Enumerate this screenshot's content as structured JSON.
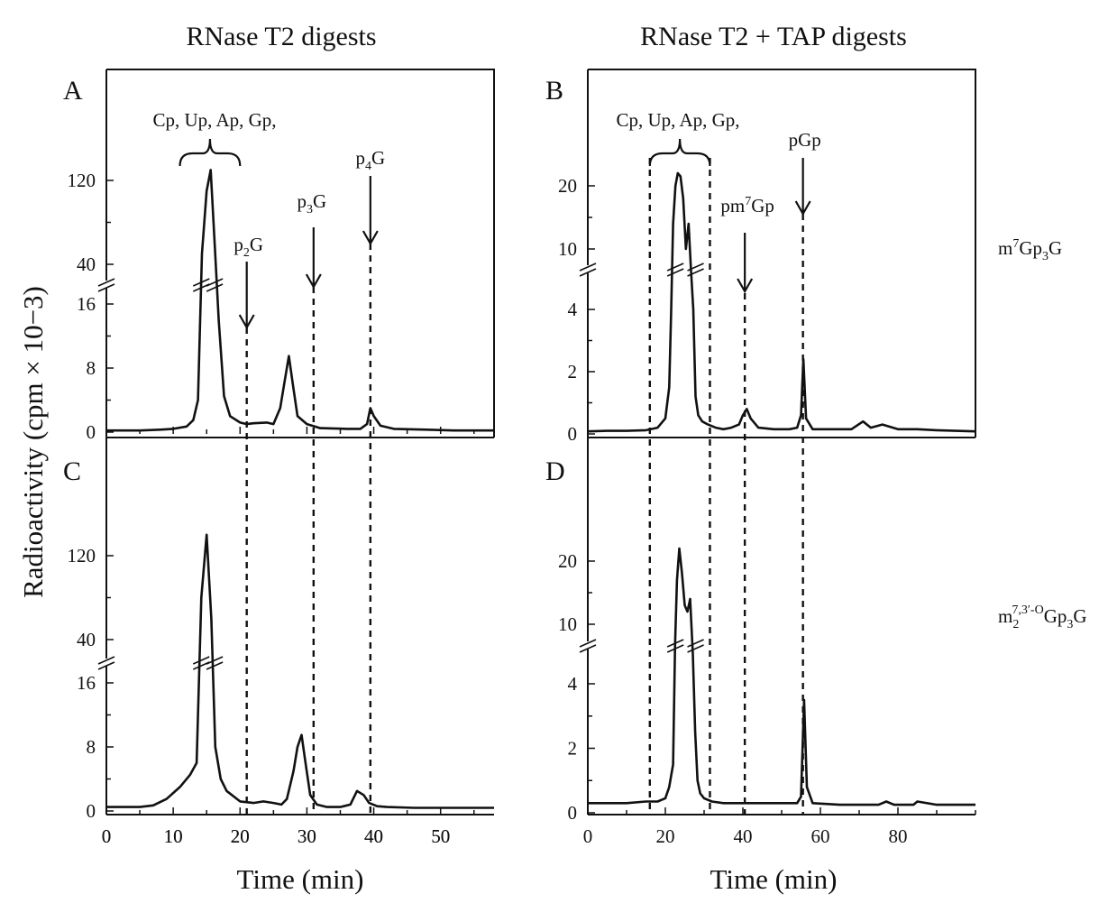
{
  "column_titles": {
    "left": "RNase T2 digests",
    "right": "RNase T2 + TAP digests"
  },
  "axis_titles": {
    "y": "Radioactivity (cpm × 10−3)",
    "x_left": "Time (min)",
    "x_right": "Time (min)"
  },
  "row_labels": {
    "top": {
      "base": "m",
      "sup": "7",
      "mid": "Gp",
      "sub": "3",
      "end": "G"
    },
    "bottom": {
      "base": "m",
      "sub1": "2",
      "sup1": "7,3′-O",
      "mid": "Gp",
      "sub2": "3",
      "end": "G"
    }
  },
  "colors": {
    "line": "#111111",
    "background": "#ffffff"
  },
  "chart_data": [
    {
      "type": "line",
      "panel": "A",
      "x_ticks": [
        "0",
        "10",
        "20",
        "30",
        "40",
        "50"
      ],
      "xlim": [
        0,
        58
      ],
      "y_ticks_lower": [
        "0",
        "8",
        "16"
      ],
      "y_ticks_upper": [
        "40",
        "120"
      ],
      "y_axis_break": true,
      "annotations": {
        "bracket": "Cp, Up, Ap, Gp,",
        "p2G": {
          "base": "p",
          "sub": "2",
          "end": "G",
          "x": 21
        },
        "p3G": {
          "base": "p",
          "sub": "3",
          "end": "G",
          "x": 31
        },
        "p4G": {
          "base": "p",
          "sub": "4",
          "end": "G",
          "x": 39.5
        }
      },
      "x": [
        0,
        5,
        8,
        10,
        12,
        13,
        13.7,
        14.3,
        15,
        15.6,
        16.2,
        16.8,
        17.6,
        18.5,
        20,
        21,
        22,
        24,
        25,
        26,
        26.6,
        27.3,
        27.9,
        28.6,
        30,
        32,
        36,
        38,
        39,
        39.5,
        40,
        41,
        43,
        48,
        52,
        58
      ],
      "y": [
        0.2,
        0.2,
        0.3,
        0.4,
        0.7,
        1.5,
        4,
        50,
        110,
        130,
        60,
        14,
        4.5,
        2,
        1.2,
        1,
        1.1,
        1.2,
        1,
        3,
        6,
        9.5,
        6,
        2,
        1,
        0.5,
        0.4,
        0.4,
        1,
        3,
        2,
        0.8,
        0.4,
        0.3,
        0.2,
        0.2
      ]
    },
    {
      "type": "line",
      "panel": "B",
      "x_ticks": [],
      "xlim": [
        0,
        100
      ],
      "y_ticks_lower": [
        "0",
        "2",
        "4"
      ],
      "y_ticks_upper": [
        "10",
        "20"
      ],
      "y_axis_break": true,
      "annotations": {
        "bracket": "Cp, Up, Ap, Gp,",
        "pm7Gp": {
          "base": "pm",
          "sup": "7",
          "end": "Gp",
          "x": 40
        },
        "pGp": {
          "text": "pGp",
          "x": 55
        }
      },
      "x": [
        0,
        5,
        10,
        15,
        18,
        20,
        21,
        21.5,
        22,
        22.6,
        23.2,
        23.9,
        24.6,
        25.3,
        26,
        26.6,
        27.2,
        27.8,
        28.5,
        29.5,
        31,
        33,
        35,
        37,
        39,
        40,
        41,
        42,
        44,
        48,
        52,
        54,
        55,
        55.6,
        56.3,
        58,
        62,
        68,
        71,
        73,
        76,
        80,
        85,
        90,
        95,
        100
      ],
      "y": [
        0.08,
        0.1,
        0.1,
        0.12,
        0.2,
        0.5,
        1.5,
        4,
        14,
        20,
        22,
        21.5,
        18,
        10,
        14,
        8,
        4,
        1.2,
        0.6,
        0.4,
        0.3,
        0.2,
        0.15,
        0.2,
        0.3,
        0.6,
        0.8,
        0.5,
        0.2,
        0.15,
        0.15,
        0.2,
        0.6,
        2.4,
        0.5,
        0.15,
        0.15,
        0.15,
        0.4,
        0.2,
        0.3,
        0.15,
        0.15,
        0.12,
        0.1,
        0.08
      ]
    },
    {
      "type": "line",
      "panel": "C",
      "x_ticks": [
        "0",
        "10",
        "20",
        "30",
        "40",
        "50"
      ],
      "xlim": [
        0,
        58
      ],
      "y_ticks_lower": [
        "0",
        "8",
        "16"
      ],
      "y_ticks_upper": [
        "40",
        "120"
      ],
      "y_axis_break": true,
      "x": [
        0,
        5,
        7,
        9,
        11,
        12.5,
        13.5,
        14.2,
        15,
        15.7,
        16.3,
        17.1,
        18,
        20,
        22,
        23.5,
        25,
        26.2,
        27,
        28,
        28.6,
        29.2,
        29.8,
        30.5,
        31.5,
        33,
        35,
        36.5,
        37.5,
        38.5,
        39.3,
        40.5,
        42,
        46,
        50,
        58
      ],
      "y": [
        0.5,
        0.5,
        0.7,
        1.5,
        3,
        4.5,
        6,
        80,
        140,
        60,
        8,
        4,
        2.5,
        1.2,
        1,
        1.2,
        1,
        0.8,
        1.5,
        5,
        8,
        9.5,
        6,
        2,
        0.8,
        0.5,
        0.5,
        0.8,
        2.5,
        2,
        1,
        0.6,
        0.5,
        0.4,
        0.4,
        0.4
      ]
    },
    {
      "type": "line",
      "panel": "D",
      "x_ticks": [
        "0",
        "20",
        "40",
        "60",
        "80"
      ],
      "xlim": [
        0,
        100
      ],
      "y_ticks_lower": [
        "0",
        "2",
        "4"
      ],
      "y_ticks_upper": [
        "10",
        "20"
      ],
      "y_axis_break": true,
      "x": [
        0,
        10,
        15,
        18,
        20,
        21,
        22,
        22.5,
        23,
        23.6,
        24.3,
        25,
        25.7,
        26.4,
        27.1,
        27.7,
        28.3,
        29,
        30,
        32,
        35,
        40,
        45,
        50,
        54,
        55,
        55.8,
        56.5,
        58,
        65,
        75,
        77,
        79,
        84,
        85,
        90,
        100
      ],
      "y": [
        0.3,
        0.3,
        0.35,
        0.35,
        0.45,
        0.8,
        1.5,
        8,
        17,
        22,
        18,
        13,
        12,
        14,
        7,
        2.5,
        1,
        0.6,
        0.45,
        0.35,
        0.3,
        0.3,
        0.3,
        0.3,
        0.3,
        0.5,
        3.5,
        0.8,
        0.3,
        0.25,
        0.25,
        0.35,
        0.25,
        0.25,
        0.35,
        0.25,
        0.25
      ]
    }
  ]
}
